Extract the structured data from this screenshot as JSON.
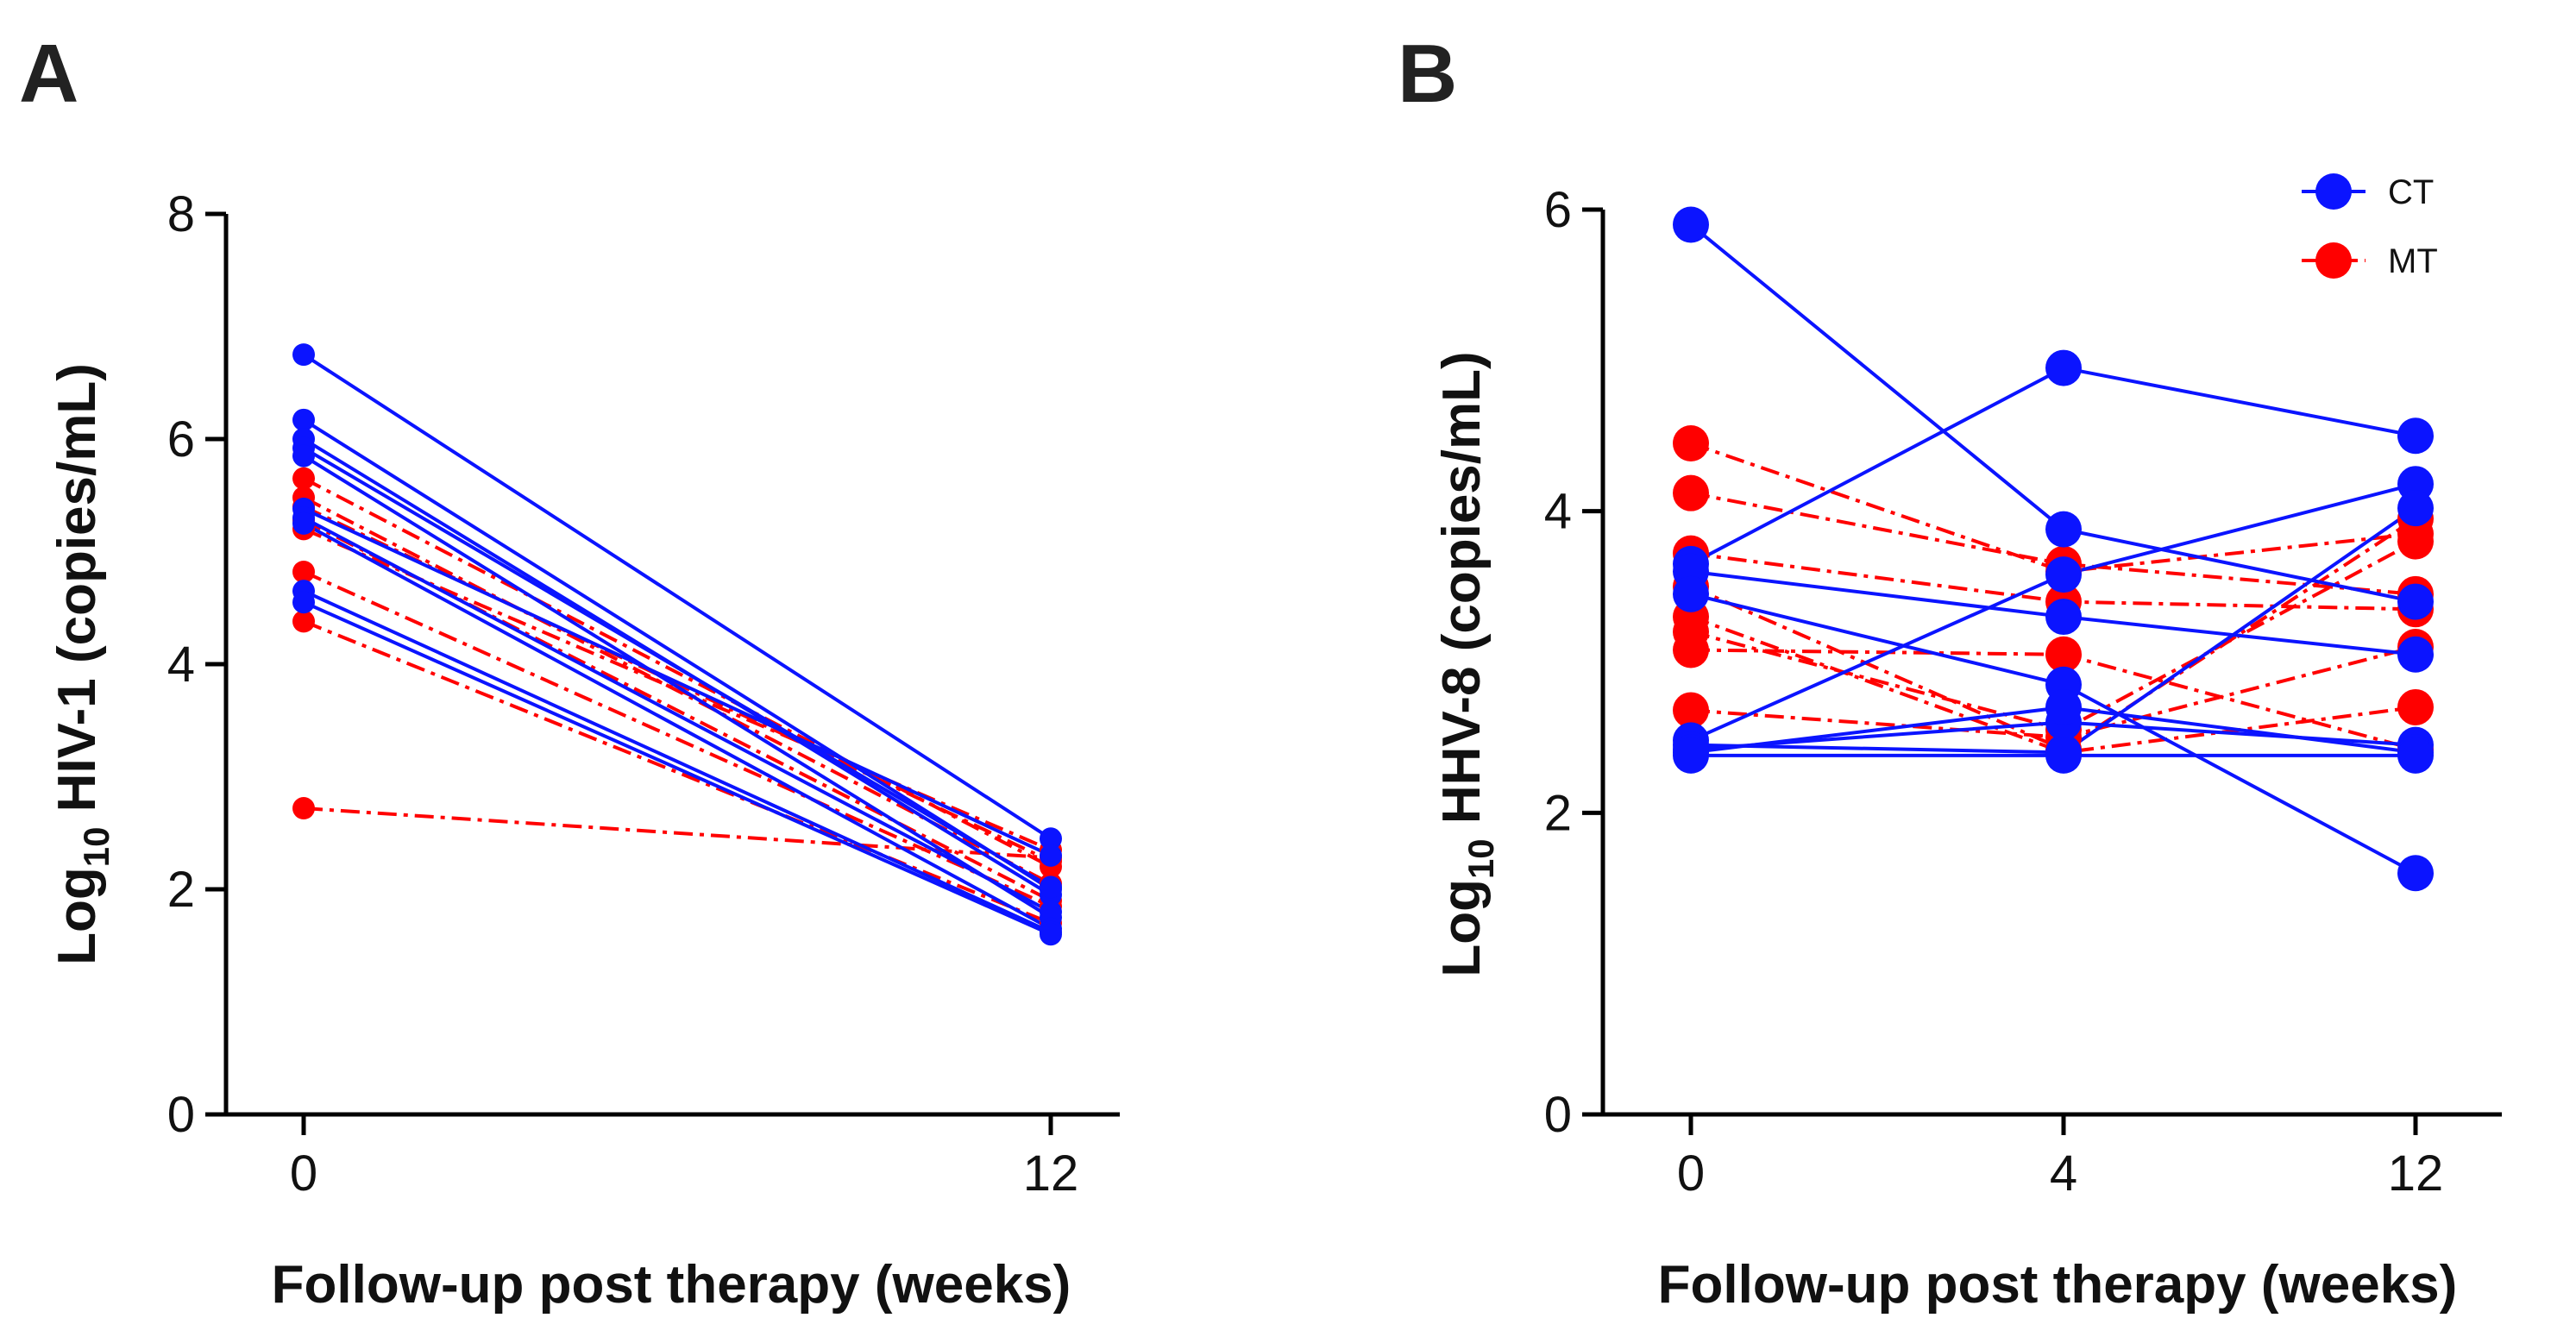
{
  "colors": {
    "CT": "#0b14ff",
    "MT": "#ff0000"
  },
  "legend": [
    {
      "key": "CT",
      "label": "CT"
    },
    {
      "key": "MT",
      "label": "MT"
    }
  ],
  "chart_data": [
    {
      "type": "line",
      "panel_label": "A",
      "xlabel": "Follow-up post therapy (weeks)",
      "ylabel": {
        "prefix": "Log",
        "subscript": "10",
        "suffix": " HIV-1 (copies/mL)"
      },
      "x": [
        0,
        12
      ],
      "x_tick_labels": [
        "0",
        "12"
      ],
      "y_ticks": [
        0,
        2,
        4,
        6,
        8
      ],
      "ylim": [
        0,
        8
      ],
      "series": [
        {
          "group": "CT",
          "values": [
            6.75,
            2.45
          ]
        },
        {
          "group": "CT",
          "values": [
            6.17,
            2.0
          ]
        },
        {
          "group": "CT",
          "values": [
            6.0,
            1.95
          ]
        },
        {
          "group": "CT",
          "values": [
            5.92,
            2.02
          ]
        },
        {
          "group": "CT",
          "values": [
            5.85,
            1.75
          ]
        },
        {
          "group": "CT",
          "values": [
            5.38,
            2.3
          ]
        },
        {
          "group": "CT",
          "values": [
            5.3,
            1.8
          ]
        },
        {
          "group": "CT",
          "values": [
            5.25,
            1.65
          ]
        },
        {
          "group": "CT",
          "values": [
            4.65,
            1.62
          ]
        },
        {
          "group": "CT",
          "values": [
            4.55,
            1.6
          ]
        },
        {
          "group": "MT",
          "values": [
            5.65,
            2.2
          ]
        },
        {
          "group": "MT",
          "values": [
            5.48,
            2.05
          ]
        },
        {
          "group": "MT",
          "values": [
            5.4,
            2.25
          ]
        },
        {
          "group": "MT",
          "values": [
            5.28,
            1.9
          ]
        },
        {
          "group": "MT",
          "values": [
            5.2,
            2.35
          ]
        },
        {
          "group": "MT",
          "values": [
            4.82,
            1.85
          ]
        },
        {
          "group": "MT",
          "values": [
            4.38,
            1.7
          ]
        },
        {
          "group": "MT",
          "values": [
            2.72,
            2.28
          ]
        }
      ]
    },
    {
      "type": "line",
      "panel_label": "B",
      "xlabel": "Follow-up post therapy (weeks)",
      "ylabel": {
        "prefix": "Log",
        "subscript": "10",
        "suffix": " HHV-8 (copies/mL)"
      },
      "x": [
        0,
        4,
        12
      ],
      "x_tick_labels": [
        "0",
        "4",
        "12"
      ],
      "y_ticks": [
        0,
        2,
        4,
        6
      ],
      "ylim": [
        0,
        6
      ],
      "series": [
        {
          "group": "CT",
          "values": [
            5.9,
            3.88,
            3.4
          ]
        },
        {
          "group": "CT",
          "values": [
            3.65,
            4.95,
            4.5
          ]
        },
        {
          "group": "CT",
          "values": [
            3.6,
            3.3,
            3.05
          ]
        },
        {
          "group": "CT",
          "values": [
            3.45,
            2.85,
            1.6
          ]
        },
        {
          "group": "CT",
          "values": [
            2.48,
            3.58,
            4.18
          ]
        },
        {
          "group": "CT",
          "values": [
            2.45,
            2.4,
            4.02
          ]
        },
        {
          "group": "CT",
          "values": [
            2.42,
            2.6,
            2.45
          ]
        },
        {
          "group": "CT",
          "values": [
            2.4,
            2.7,
            2.4
          ]
        },
        {
          "group": "CT",
          "values": [
            2.38,
            2.38,
            2.38
          ]
        },
        {
          "group": "MT",
          "values": [
            4.45,
            3.6,
            3.85
          ]
        },
        {
          "group": "MT",
          "values": [
            4.12,
            3.65,
            3.45
          ]
        },
        {
          "group": "MT",
          "values": [
            3.72,
            3.4,
            3.35
          ]
        },
        {
          "group": "MT",
          "values": [
            3.5,
            2.42,
            3.95
          ]
        },
        {
          "group": "MT",
          "values": [
            3.3,
            2.4,
            2.7
          ]
        },
        {
          "group": "MT",
          "values": [
            3.2,
            2.55,
            3.8
          ]
        },
        {
          "group": "MT",
          "values": [
            3.08,
            3.05,
            2.42
          ]
        },
        {
          "group": "MT",
          "values": [
            2.68,
            2.5,
            3.1
          ]
        }
      ]
    }
  ]
}
